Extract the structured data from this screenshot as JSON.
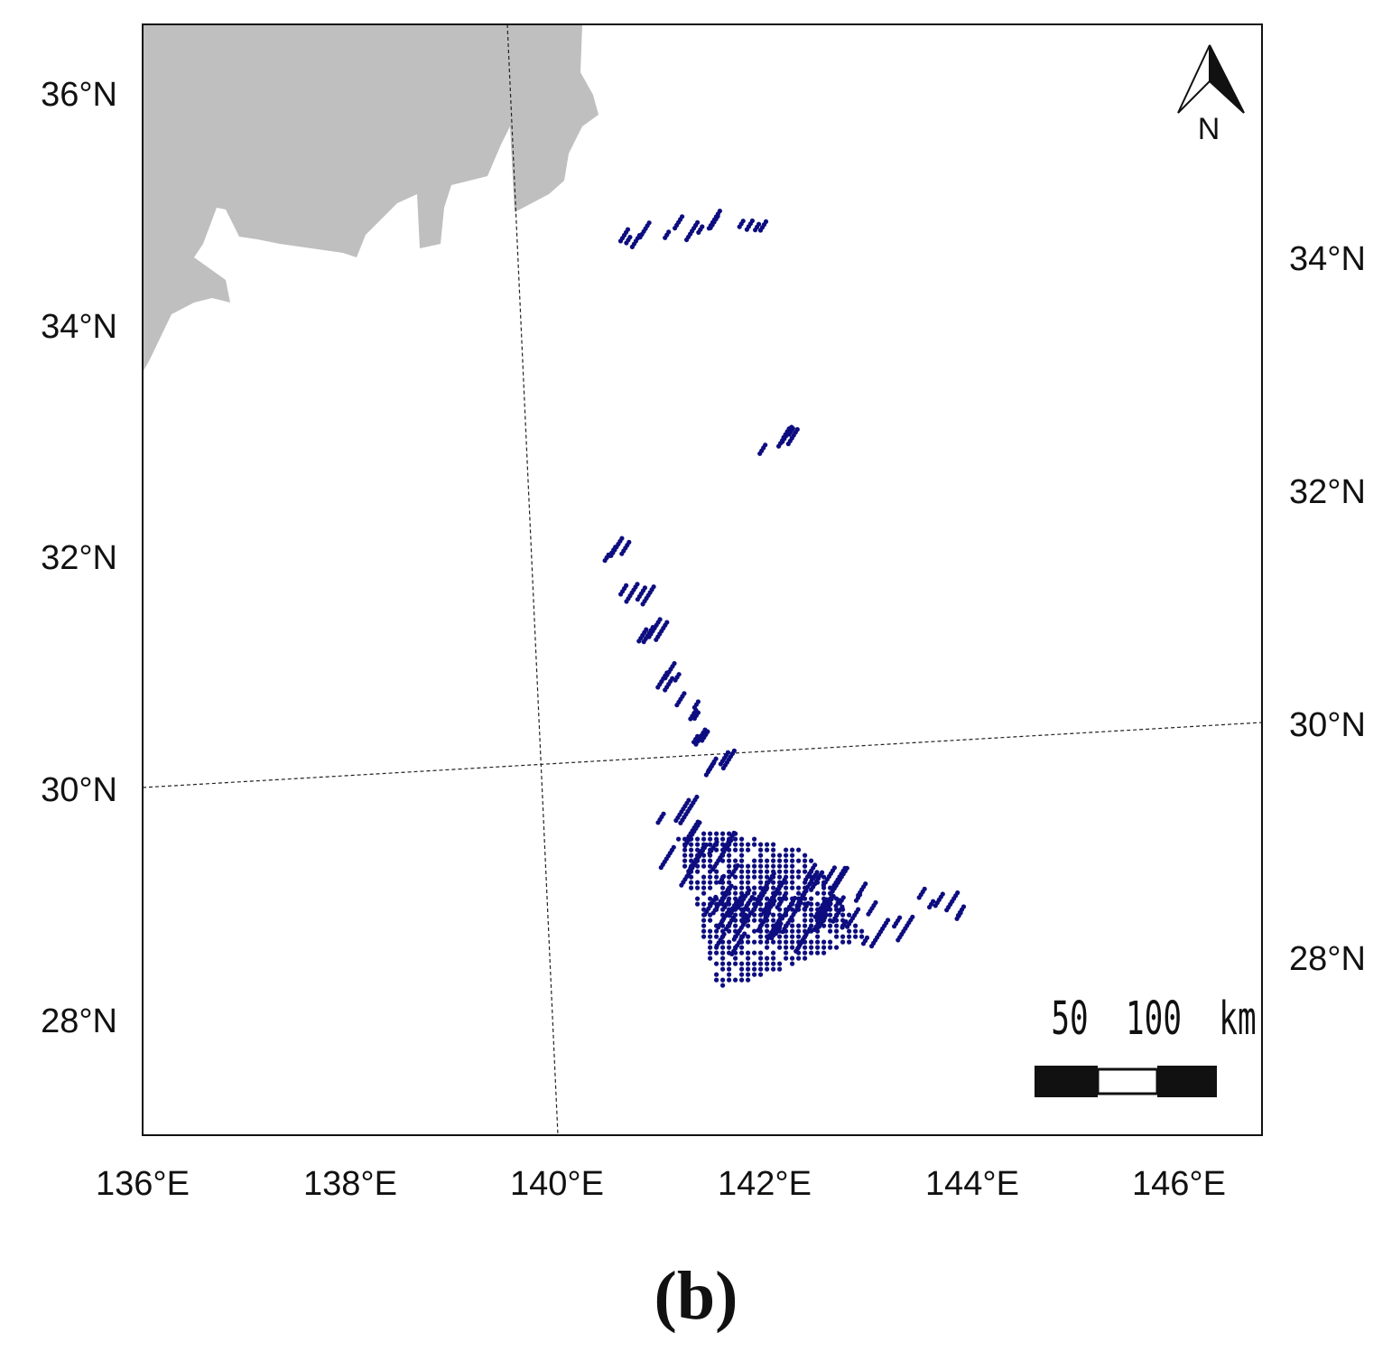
{
  "map": {
    "extent": {
      "lon": [
        136.0,
        146.8
      ],
      "lat": [
        27.1,
        36.7
      ]
    },
    "x_ticks": [
      "136°E",
      "138°E",
      "140°E",
      "142°E",
      "144°E",
      "146°E"
    ],
    "y_ticks_left": [
      "36°N",
      "34°N",
      "32°N",
      "30°N",
      "28°N"
    ],
    "y_ticks_right": [
      "34°N",
      "32°N",
      "30°N",
      "28°N"
    ],
    "graticule": "dashed",
    "land_color": "#bfbfbf",
    "point_color": "#0d0d80",
    "north_arrow": {
      "label": "N"
    },
    "scale_bar": {
      "label": "50  100  km"
    },
    "caption": "(b)"
  },
  "chart_data": {
    "type": "scatter",
    "title": "",
    "xlabel": "",
    "ylabel": "",
    "grid": "dashed graticule",
    "legend": "none",
    "clusters": [
      {
        "name": "",
        "points": [
          [
            140.67,
            34.82
          ],
          [
            140.82,
            34.83
          ],
          [
            141.1,
            34.88
          ],
          [
            141.35,
            34.9
          ],
          [
            141.55,
            34.93
          ],
          [
            141.72,
            34.92
          ],
          [
            141.9,
            34.9
          ]
        ]
      },
      {
        "name": "",
        "points": [
          [
            142.05,
            33.05
          ],
          [
            142.15,
            33.08
          ],
          [
            142.25,
            33.1
          ]
        ]
      },
      {
        "name": "",
        "points": [
          [
            140.52,
            32.1
          ],
          [
            140.72,
            31.75
          ],
          [
            140.9,
            31.35
          ],
          [
            141.05,
            31.0
          ],
          [
            141.25,
            30.75
          ],
          [
            141.4,
            30.45
          ],
          [
            141.55,
            30.25
          ]
        ]
      },
      {
        "name": "",
        "points": [
          [
            141.3,
            29.6
          ],
          [
            141.55,
            29.2
          ],
          [
            141.75,
            28.85
          ],
          [
            142.0,
            28.9
          ],
          [
            142.3,
            29.0
          ],
          [
            142.6,
            29.1
          ],
          [
            142.9,
            28.95
          ]
        ]
      },
      {
        "name": "",
        "points": [
          [
            143.55,
            29.1
          ],
          [
            143.75,
            29.05
          ],
          [
            143.95,
            28.95
          ]
        ]
      }
    ]
  }
}
